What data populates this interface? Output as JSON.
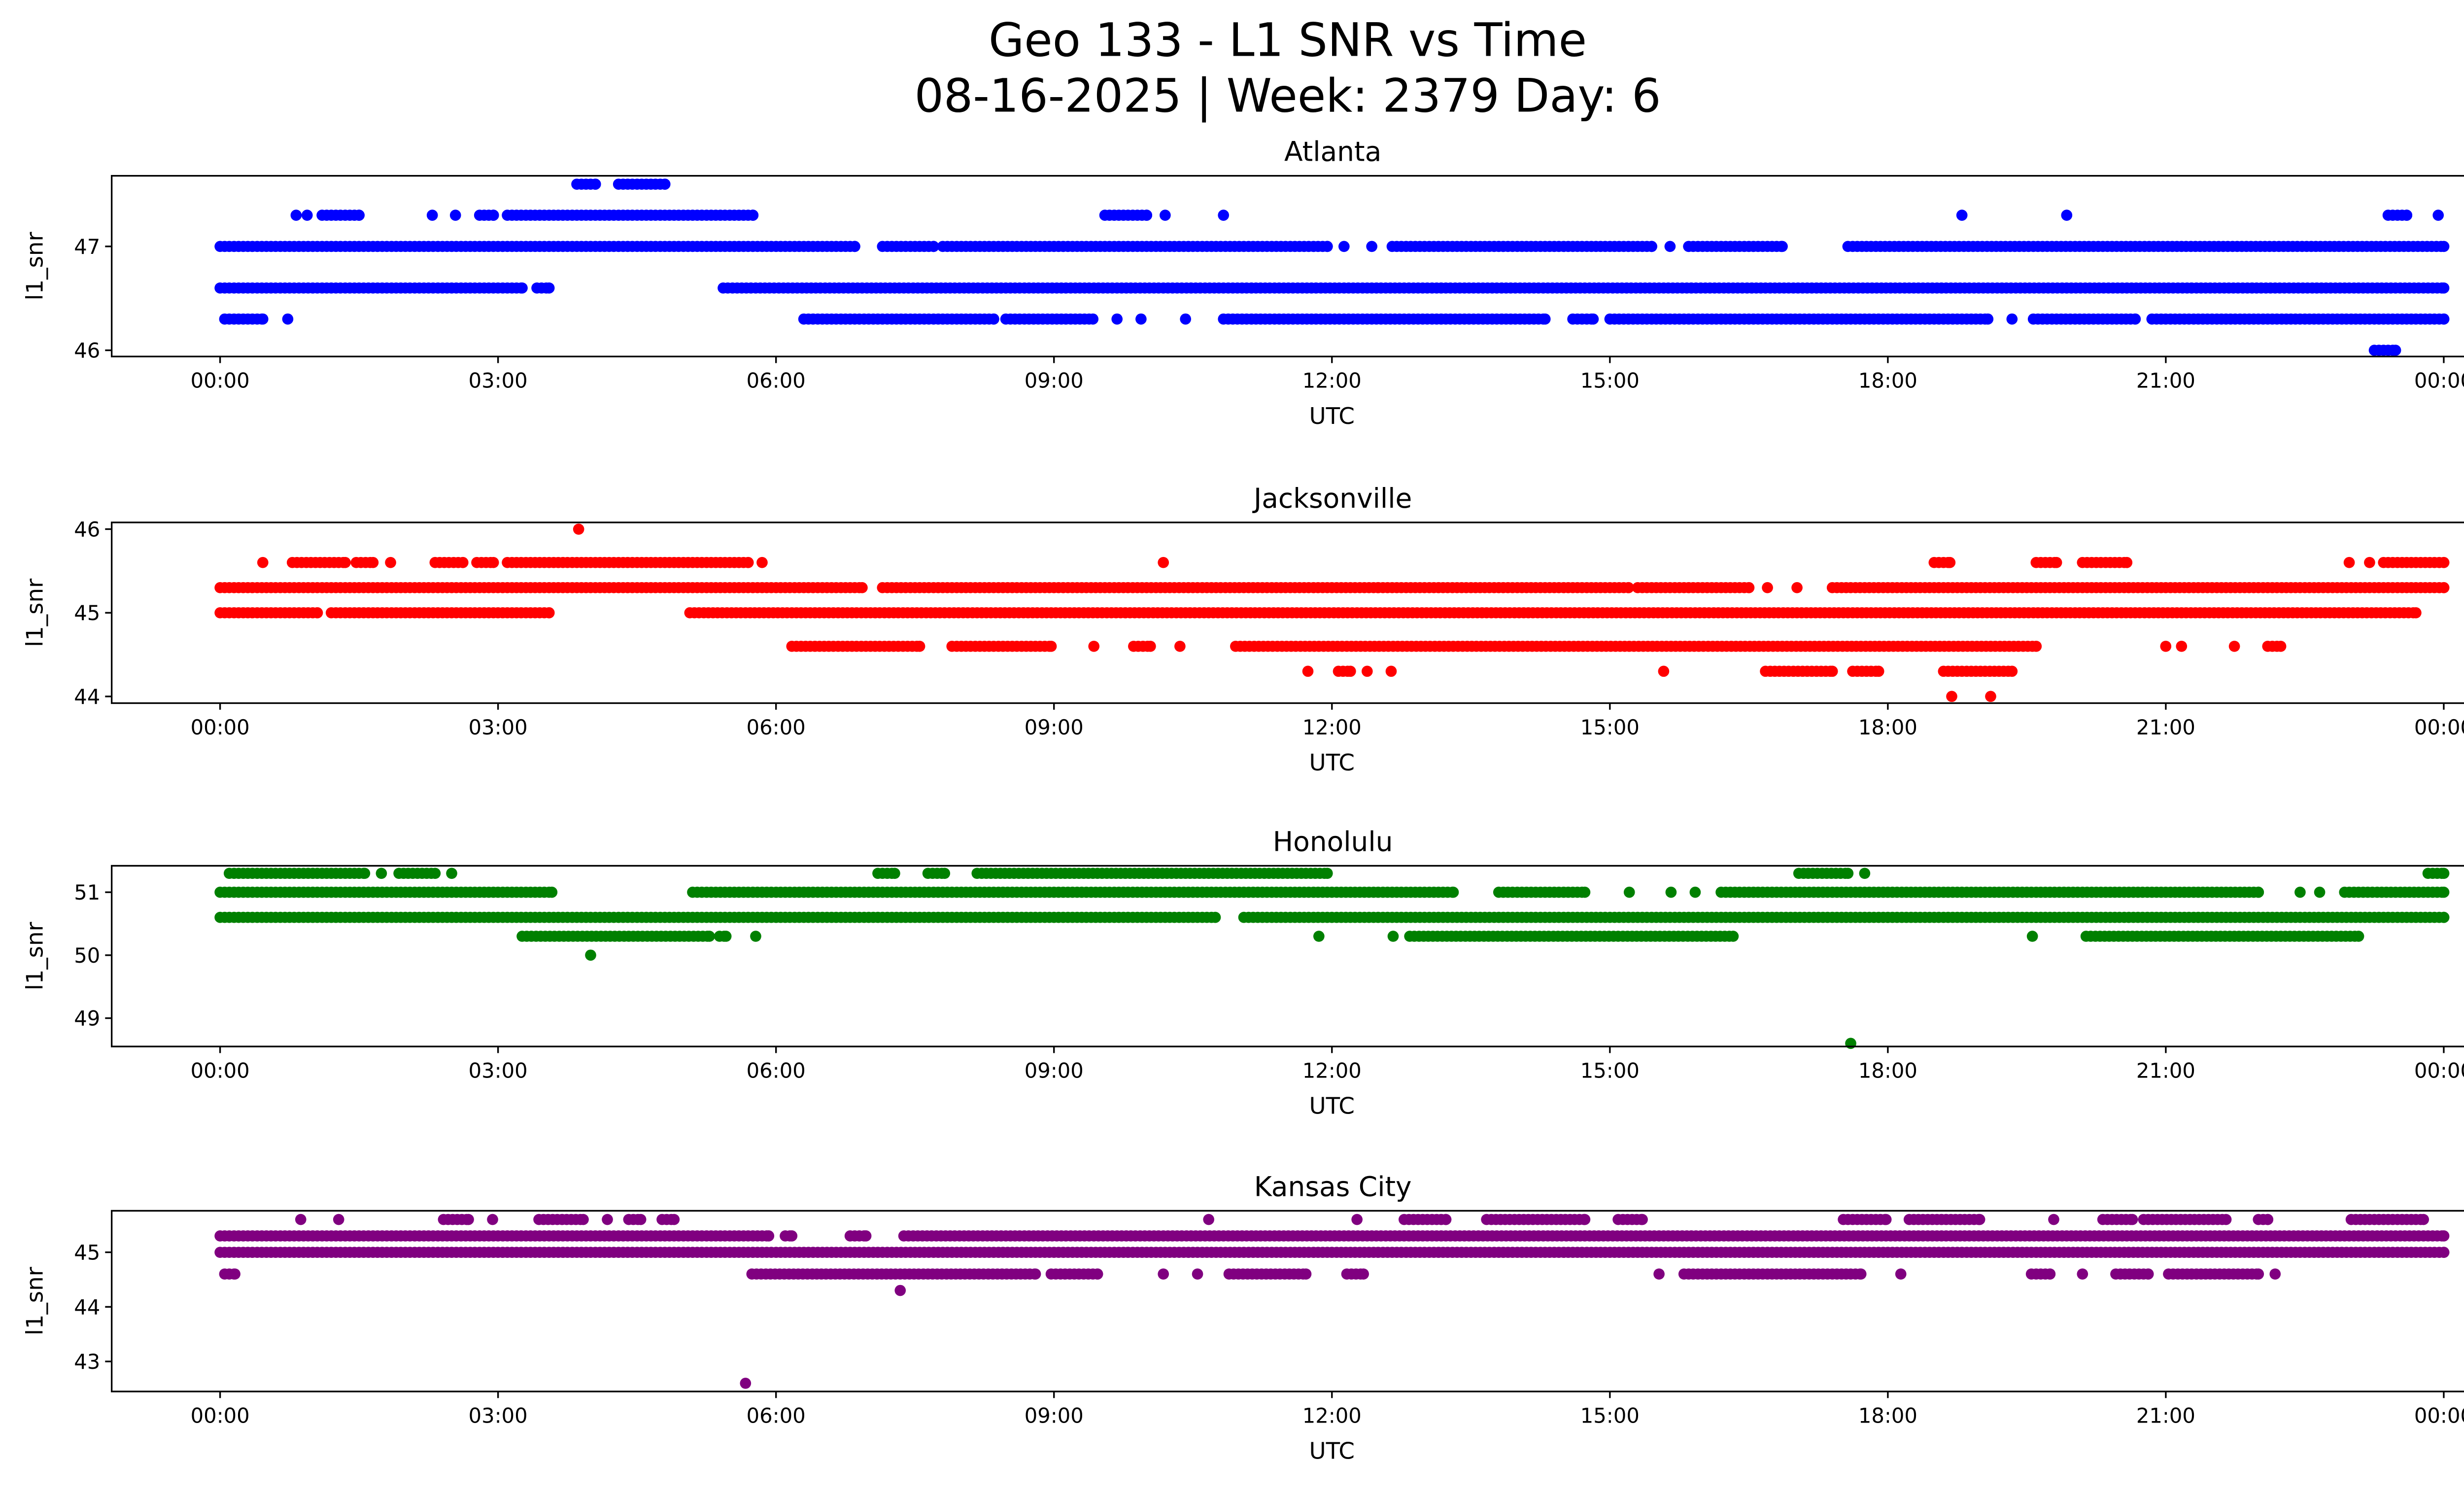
{
  "chart_data": {
    "type": "scatter",
    "title": "Geo 133 - L1 SNR vs Time",
    "subtitle": "08-16-2025 | Week: 2379 Day: 6",
    "x_unit": "hours UTC (0 = 00:00, 24 = next 00:00)",
    "xlim": [
      -1.17,
      25.19
    ],
    "x_ticks": [
      0,
      3,
      6,
      9,
      12,
      15,
      18,
      21,
      24
    ],
    "x_tick_labels": [
      "00:00",
      "03:00",
      "06:00",
      "09:00",
      "12:00",
      "15:00",
      "18:00",
      "21:00",
      "00:00"
    ],
    "panels": [
      {
        "title": "Atlanta",
        "xlabel": "UTC",
        "ylabel": "l1_snr",
        "color": "#0000ff",
        "ylim": [
          45.94,
          47.68
        ],
        "y_ticks": [
          46,
          47
        ],
        "y_tick_labels": [
          "46",
          "47"
        ],
        "series": [
          {
            "y": 47.6,
            "runs": [
              [
                3.85,
                4.05
              ],
              [
                4.3,
                4.8
              ]
            ]
          },
          {
            "y": 47.3,
            "runs": [
              [
                0.82,
                0.82
              ],
              [
                0.94,
                0.94
              ],
              [
                1.1,
                1.5
              ],
              [
                2.29,
                2.29
              ],
              [
                2.54,
                2.54
              ],
              [
                2.8,
                2.95
              ],
              [
                3.1,
                5.75
              ],
              [
                9.55,
                10.0
              ],
              [
                10.2,
                10.2
              ],
              [
                10.83,
                10.83
              ],
              [
                18.8,
                18.8
              ],
              [
                19.93,
                19.93
              ],
              [
                23.4,
                23.6
              ],
              [
                23.94,
                23.94
              ]
            ]
          },
          {
            "y": 47.0,
            "runs": [
              [
                0,
                6.85
              ],
              [
                7.15,
                7.7
              ],
              [
                7.8,
                11.95
              ],
              [
                12.13,
                12.13
              ],
              [
                12.43,
                12.43
              ],
              [
                12.65,
                15.45
              ],
              [
                15.65,
                15.65
              ],
              [
                15.85,
                16.86
              ],
              [
                17.57,
                24
              ]
            ]
          },
          {
            "y": 46.6,
            "runs": [
              [
                0,
                3.26
              ],
              [
                3.42,
                3.55
              ],
              [
                5.43,
                24
              ]
            ]
          },
          {
            "y": 46.3,
            "runs": [
              [
                0.05,
                0.46
              ],
              [
                0.73,
                0.73
              ],
              [
                6.3,
                8.35
              ],
              [
                8.48,
                9.42
              ],
              [
                9.68,
                9.68
              ],
              [
                9.94,
                9.94
              ],
              [
                10.42,
                10.42
              ],
              [
                10.83,
                14.3
              ],
              [
                14.6,
                14.82
              ],
              [
                15.0,
                19.08
              ],
              [
                19.34,
                19.34
              ],
              [
                19.57,
                20.67
              ],
              [
                20.85,
                24
              ]
            ]
          },
          {
            "y": 46.0,
            "runs": [
              [
                23.25,
                23.48
              ]
            ]
          }
        ]
      },
      {
        "title": "Jacksonville",
        "xlabel": "UTC",
        "ylabel": "l1_snr",
        "color": "#ff0000",
        "ylim": [
          43.92,
          46.08
        ],
        "y_ticks": [
          44,
          45,
          46
        ],
        "y_tick_labels": [
          "44",
          "45",
          "46"
        ],
        "series": [
          {
            "y": 46.0,
            "runs": [
              [
                3.87,
                3.87
              ]
            ]
          },
          {
            "y": 45.6,
            "runs": [
              [
                0.46,
                0.46
              ],
              [
                0.78,
                1.35
              ],
              [
                1.47,
                1.65
              ],
              [
                1.84,
                1.84
              ],
              [
                2.32,
                2.62
              ],
              [
                2.77,
                2.95
              ],
              [
                3.1,
                5.7
              ],
              [
                5.85,
                5.85
              ],
              [
                10.18,
                10.18
              ],
              [
                18.5,
                18.67
              ],
              [
                19.6,
                19.82
              ],
              [
                20.1,
                20.58
              ],
              [
                22.98,
                22.98
              ],
              [
                23.2,
                23.2
              ],
              [
                23.35,
                24
              ]
            ]
          },
          {
            "y": 45.3,
            "runs": [
              [
                0,
                6.93
              ],
              [
                7.15,
                12.5
              ],
              [
                12.55,
                15.2
              ],
              [
                15.3,
                16.5
              ],
              [
                16.7,
                16.7
              ],
              [
                17.02,
                17.02
              ],
              [
                17.4,
                24
              ]
            ]
          },
          {
            "y": 45.0,
            "runs": [
              [
                0,
                1.05
              ],
              [
                1.2,
                3.55
              ],
              [
                5.07,
                23.7
              ]
            ]
          },
          {
            "y": 44.6,
            "runs": [
              [
                6.17,
                7.55
              ],
              [
                7.9,
                8.97
              ],
              [
                9.43,
                9.43
              ],
              [
                9.86,
                10.04
              ],
              [
                10.36,
                10.36
              ],
              [
                10.96,
                19.6
              ],
              [
                21.0,
                21.0
              ],
              [
                21.17,
                21.17
              ],
              [
                21.74,
                21.74
              ],
              [
                22.1,
                22.24
              ]
            ]
          },
          {
            "y": 44.3,
            "runs": [
              [
                11.74,
                11.74
              ],
              [
                12.07,
                12.2
              ],
              [
                12.38,
                12.38
              ],
              [
                12.64,
                12.64
              ],
              [
                15.58,
                15.58
              ],
              [
                16.68,
                17.4
              ],
              [
                17.62,
                17.9
              ],
              [
                18.6,
                19.34
              ]
            ]
          },
          {
            "y": 44.0,
            "runs": [
              [
                18.69,
                18.69
              ],
              [
                19.11,
                19.11
              ]
            ]
          }
        ]
      },
      {
        "title": "Honolulu",
        "xlabel": "UTC",
        "ylabel": "l1_snr",
        "color": "#008000",
        "ylim": [
          48.55,
          51.42
        ],
        "y_ticks": [
          49,
          50,
          51
        ],
        "y_tick_labels": [
          "49",
          "50",
          "51"
        ],
        "series": [
          {
            "y": 51.3,
            "runs": [
              [
                0.1,
                1.56
              ],
              [
                1.74,
                1.74
              ],
              [
                1.93,
                2.32
              ],
              [
                2.5,
                2.5
              ],
              [
                7.1,
                7.28
              ],
              [
                7.64,
                7.82
              ],
              [
                8.17,
                11.95
              ],
              [
                17.04,
                17.57
              ],
              [
                17.75,
                17.75
              ],
              [
                23.83,
                24
              ]
            ]
          },
          {
            "y": 51.0,
            "runs": [
              [
                0,
                3.58
              ],
              [
                5.1,
                13.31
              ],
              [
                13.8,
                14.73
              ],
              [
                15.21,
                15.21
              ],
              [
                15.66,
                15.66
              ],
              [
                15.92,
                15.92
              ],
              [
                16.2,
                22.0
              ],
              [
                22.45,
                22.45
              ],
              [
                22.66,
                22.66
              ],
              [
                22.93,
                24
              ]
            ]
          },
          {
            "y": 50.6,
            "runs": [
              [
                0,
                10.74
              ],
              [
                11.05,
                24
              ]
            ]
          },
          {
            "y": 50.3,
            "runs": [
              [
                3.26,
                5.28
              ],
              [
                5.39,
                5.46
              ],
              [
                5.78,
                5.78
              ],
              [
                11.86,
                11.86
              ],
              [
                12.66,
                12.66
              ],
              [
                12.84,
                16.33
              ],
              [
                19.56,
                19.56
              ],
              [
                20.14,
                23.08
              ]
            ]
          },
          {
            "y": 50.0,
            "runs": [
              [
                4.0,
                4.0
              ]
            ]
          },
          {
            "y": 48.6,
            "runs": [
              [
                17.6,
                17.6
              ]
            ]
          }
        ]
      },
      {
        "title": "Kansas City",
        "xlabel": "UTC",
        "ylabel": "l1_snr",
        "color": "#800080",
        "ylim": [
          42.45,
          45.76
        ],
        "y_ticks": [
          43,
          44,
          45
        ],
        "y_tick_labels": [
          "43",
          "44",
          "45"
        ],
        "series": [
          {
            "y": 45.6,
            "runs": [
              [
                0.87,
                0.87
              ],
              [
                1.28,
                1.28
              ],
              [
                2.41,
                2.68
              ],
              [
                2.94,
                2.94
              ],
              [
                3.44,
                3.92
              ],
              [
                4.18,
                4.18
              ],
              [
                4.41,
                4.54
              ],
              [
                4.77,
                4.9
              ],
              [
                10.67,
                10.67
              ],
              [
                12.27,
                12.27
              ],
              [
                12.78,
                13.23
              ],
              [
                13.67,
                14.73
              ],
              [
                15.09,
                15.35
              ],
              [
                17.52,
                17.98
              ],
              [
                18.23,
                18.99
              ],
              [
                19.79,
                19.79
              ],
              [
                20.32,
                20.64
              ],
              [
                20.76,
                21.65
              ],
              [
                22.0,
                22.1
              ],
              [
                23.0,
                23.78
              ]
            ]
          },
          {
            "y": 45.3,
            "runs": [
              [
                0,
                5.92
              ],
              [
                6.1,
                6.17
              ],
              [
                6.8,
                6.97
              ],
              [
                7.38,
                24
              ]
            ]
          },
          {
            "y": 45.0,
            "runs": [
              [
                0,
                24
              ]
            ]
          },
          {
            "y": 44.6,
            "runs": [
              [
                0.05,
                0.16
              ],
              [
                5.74,
                8.8
              ],
              [
                8.97,
                9.47
              ],
              [
                10.18,
                10.18
              ],
              [
                10.55,
                10.55
              ],
              [
                10.89,
                11.72
              ],
              [
                12.16,
                12.34
              ],
              [
                15.53,
                15.53
              ],
              [
                15.8,
                17.71
              ],
              [
                18.14,
                18.14
              ],
              [
                19.55,
                19.75
              ],
              [
                20.1,
                20.1
              ],
              [
                20.46,
                20.81
              ],
              [
                21.03,
                22.0
              ],
              [
                22.18,
                22.18
              ]
            ]
          },
          {
            "y": 44.3,
            "runs": [
              [
                7.34,
                7.34
              ]
            ]
          },
          {
            "y": 42.6,
            "runs": [
              [
                5.67,
                5.67
              ]
            ]
          }
        ]
      }
    ]
  }
}
